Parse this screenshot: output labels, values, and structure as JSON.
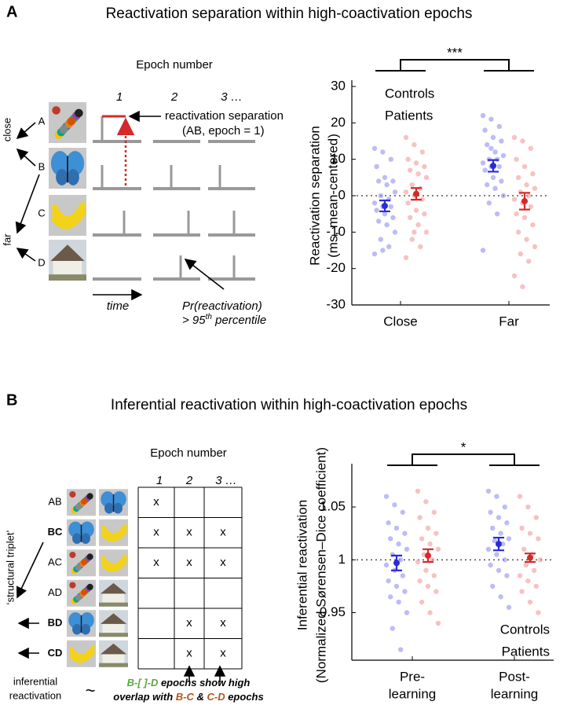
{
  "panel_a": {
    "label": "A",
    "title": "Reactivation separation within high-coactivation epochs",
    "epoch_header": "Epoch number",
    "epochs": [
      "1",
      "2",
      "3 …"
    ],
    "objects": [
      "A",
      "B",
      "C",
      "D"
    ],
    "close": "close",
    "far": "far",
    "sep_label": [
      "reactivation separation",
      "(AB, epoch = 1)"
    ],
    "time": "time",
    "pr_label": "Pr(reactivation)",
    "pct_label": [
      "> 95",
      "th",
      " percentile"
    ]
  },
  "panel_b": {
    "label": "B",
    "title": "Inferential reactivation within high-coactivation epochs",
    "epoch_header": "Epoch number",
    "epochs": [
      "1",
      "2",
      "3 …"
    ],
    "triplet": "‘structural triplet’",
    "rows": [
      {
        "label": "AB",
        "color": "#000000"
      },
      {
        "label": "BC",
        "color": "#b5541c"
      },
      {
        "label": "AC",
        "color": "#000000"
      },
      {
        "label": "AD",
        "color": "#000000"
      },
      {
        "label": "BD",
        "color": "#5aa83c"
      },
      {
        "label": "CD",
        "color": "#b5541c"
      }
    ],
    "cells": [
      [
        {
          "text": "x",
          "color": "#000000"
        },
        null,
        null
      ],
      [
        {
          "text": "x",
          "color": "#000000"
        },
        {
          "text": "x",
          "color": "#b5541c"
        },
        {
          "text": "x",
          "color": "#b5541c"
        }
      ],
      [
        {
          "text": "x",
          "color": "#000000"
        },
        {
          "text": "x",
          "color": "#000000"
        },
        {
          "text": "x",
          "color": "#000000"
        }
      ],
      [
        null,
        null,
        null
      ],
      [
        null,
        {
          "text": "x",
          "color": "#5aa83c"
        },
        {
          "text": "x",
          "color": "#5aa83c"
        }
      ],
      [
        null,
        {
          "text": "x",
          "color": "#b5541c"
        },
        {
          "text": "x",
          "color": "#b5541c"
        }
      ]
    ],
    "inferential": [
      "inferential",
      "reactivation"
    ],
    "tilde": "~",
    "caption_1": [
      {
        "text": "B-[ ]-D",
        "color": "#5aa83c"
      },
      {
        "text": " epochs show high",
        "color": "#000000"
      }
    ],
    "caption_2": [
      {
        "text": "overlap with ",
        "color": "#000000"
      },
      {
        "text": "B-C",
        "color": "#b5541c"
      },
      {
        "text": " & ",
        "color": "#000000"
      },
      {
        "text": "C-D",
        "color": "#b5541c"
      },
      {
        "text": " epochs",
        "color": "#000000"
      }
    ]
  },
  "chart_data": [
    {
      "type": "scatter",
      "ylabel": [
        "Reactivation separation",
        "(ms, mean-centered)"
      ],
      "categories": [
        [
          "Close"
        ],
        [
          "Far"
        ]
      ],
      "ylim": [
        -30,
        30
      ],
      "yticks": [
        -30,
        -20,
        -10,
        0,
        10,
        20,
        30
      ],
      "reference_line": 0,
      "annotation": "***",
      "legend": "upper left",
      "series": [
        {
          "name": "Controls",
          "color": "#2b2bd6",
          "point_color": "#8f8ff0",
          "values": [
            [
              13,
              12,
              10,
              8,
              5,
              4,
              4,
              3,
              1,
              0,
              -1,
              -2,
              -3,
              -3,
              -4,
              -5,
              -6,
              -7,
              -8,
              -10,
              -12,
              -14,
              -16,
              -15
            ],
            [
              22,
              21,
              19,
              18,
              16,
              15,
              14,
              12,
              11,
              10,
              10,
              9,
              8,
              8,
              7,
              5,
              4,
              3,
              2,
              0,
              -2,
              -5,
              -15,
              13
            ]
          ],
          "mean": [
            -2.8,
            8.2
          ],
          "error": [
            1.5,
            1.6
          ]
        },
        {
          "name": "Patients",
          "color": "#d42a2a",
          "point_color": "#f09a9a",
          "values": [
            [
              16,
              14,
              12,
              10,
              9,
              8,
              7,
              6,
              5,
              3,
              2,
              1,
              0,
              -1,
              -2,
              -4,
              -5,
              -6,
              -8,
              -10,
              -12,
              -14,
              -17,
              -10
            ],
            [
              16,
              15,
              13,
              10,
              8,
              6,
              5,
              3,
              2,
              1,
              0,
              -1,
              -2,
              -3,
              -5,
              -6,
              -8,
              -10,
              -12,
              -14,
              -16,
              -18,
              -22,
              -25
            ]
          ],
          "mean": [
            0.5,
            -1.5
          ],
          "error": [
            1.6,
            2.3
          ]
        }
      ]
    },
    {
      "type": "scatter",
      "ylabel": [
        "Inferential reactivation",
        "(Normalized Sørensen–Dice coefficient)"
      ],
      "categories": [
        [
          "Pre-",
          "learning"
        ],
        [
          "Post-",
          "learning"
        ]
      ],
      "ylim": [
        0.905,
        1.085
      ],
      "yticks": [
        0.95,
        1,
        1.05
      ],
      "reference_line": 1,
      "annotation": "*",
      "legend": "lower right",
      "series": [
        {
          "name": "Controls",
          "color": "#2b2bd6",
          "point_color": "#8f8ff0",
          "values": [
            [
              1.06,
              1.052,
              1.045,
              1.035,
              1.03,
              1.025,
              1.02,
              1.015,
              1.01,
              1.005,
              1.0,
              0.995,
              0.99,
              0.985,
              0.98,
              0.975,
              0.97,
              0.965,
              0.96,
              0.95,
              0.935,
              0.915
            ],
            [
              1.065,
              1.06,
              1.05,
              1.045,
              1.04,
              1.035,
              1.03,
              1.025,
              1.02,
              1.018,
              1.015,
              1.01,
              1.005,
              1.0,
              0.995,
              0.99,
              0.985,
              0.975,
              0.965,
              0.955
            ]
          ],
          "mean": [
            0.997,
            1.015
          ],
          "error": [
            0.007,
            0.006
          ]
        },
        {
          "name": "Patients",
          "color": "#d42a2a",
          "point_color": "#f09a9a",
          "values": [
            [
              1.065,
              1.055,
              1.045,
              1.04,
              1.03,
              1.025,
              1.02,
              1.015,
              1.01,
              1.005,
              1.0,
              0.998,
              0.99,
              0.985,
              0.98,
              0.975,
              0.97,
              0.96,
              0.95,
              0.94
            ],
            [
              1.06,
              1.05,
              1.04,
              1.03,
              1.025,
              1.02,
              1.01,
              1.005,
              1.0,
              0.995,
              0.99,
              0.985,
              0.98,
              0.975,
              0.97,
              0.96,
              0.95
            ]
          ],
          "mean": [
            1.004,
            1.002
          ],
          "error": [
            0.006,
            0.004
          ]
        }
      ]
    }
  ]
}
